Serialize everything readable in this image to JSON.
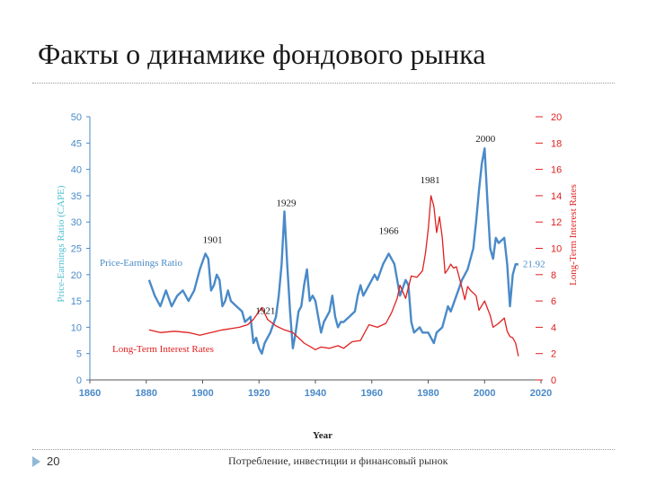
{
  "slide": {
    "title": "Факты о динамике фондового рынка",
    "page_number": "20",
    "footer": "Потребление, инвестиции и финансовый рынок"
  },
  "colors": {
    "pe": "#4a8ac8",
    "rates": "#e02020",
    "axis_left": "#4a8ac8",
    "axis_right": "#e02020",
    "ylabel_left": "#4fbfd0",
    "annotation": "#1a1a1a",
    "rule": "#9a9a9a",
    "marker": "#8fb9d6"
  },
  "chart_data": {
    "type": "line",
    "xlabel": "Year",
    "ylabel_left": "Price-Earnings Ratio (CAPE)",
    "ylabel_right": "Long-Term Interest Rates",
    "xlim": [
      1860,
      2020
    ],
    "ylim_left": [
      0,
      50
    ],
    "ylim_right": [
      0,
      20
    ],
    "x_ticks": [
      1860,
      1880,
      1900,
      1920,
      1940,
      1960,
      1980,
      2000,
      2020
    ],
    "y_ticks_left": [
      0,
      5,
      10,
      15,
      20,
      25,
      30,
      35,
      40,
      45,
      50
    ],
    "y_ticks_right": [
      0,
      2,
      4,
      6,
      8,
      10,
      12,
      14,
      16,
      18,
      20
    ],
    "grid": false,
    "series": [
      {
        "name": "Price-Earnings Ratio",
        "axis": "left",
        "points": [
          [
            1881,
            19
          ],
          [
            1883,
            16
          ],
          [
            1885,
            14
          ],
          [
            1887,
            17
          ],
          [
            1889,
            14
          ],
          [
            1891,
            16
          ],
          [
            1893,
            17
          ],
          [
            1895,
            15
          ],
          [
            1897,
            17
          ],
          [
            1899,
            21
          ],
          [
            1901,
            24
          ],
          [
            1902,
            23
          ],
          [
            1903,
            17
          ],
          [
            1904,
            18
          ],
          [
            1905,
            20
          ],
          [
            1906,
            19
          ],
          [
            1907,
            14
          ],
          [
            1908,
            15
          ],
          [
            1909,
            17
          ],
          [
            1910,
            15
          ],
          [
            1912,
            14
          ],
          [
            1914,
            13
          ],
          [
            1915,
            11
          ],
          [
            1917,
            12
          ],
          [
            1918,
            7
          ],
          [
            1919,
            8
          ],
          [
            1920,
            6
          ],
          [
            1921,
            5
          ],
          [
            1922,
            7
          ],
          [
            1924,
            9
          ],
          [
            1926,
            12
          ],
          [
            1927,
            16
          ],
          [
            1928,
            22
          ],
          [
            1929,
            32
          ],
          [
            1930,
            22
          ],
          [
            1931,
            13
          ],
          [
            1932,
            6
          ],
          [
            1933,
            9
          ],
          [
            1934,
            13
          ],
          [
            1935,
            14
          ],
          [
            1936,
            18
          ],
          [
            1937,
            21
          ],
          [
            1938,
            15
          ],
          [
            1939,
            16
          ],
          [
            1940,
            15
          ],
          [
            1941,
            12
          ],
          [
            1942,
            9
          ],
          [
            1943,
            11
          ],
          [
            1945,
            13
          ],
          [
            1946,
            16
          ],
          [
            1947,
            12
          ],
          [
            1948,
            10
          ],
          [
            1949,
            11
          ],
          [
            1950,
            11
          ],
          [
            1952,
            12
          ],
          [
            1954,
            13
          ],
          [
            1955,
            16
          ],
          [
            1956,
            18
          ],
          [
            1957,
            16
          ],
          [
            1959,
            18
          ],
          [
            1961,
            20
          ],
          [
            1962,
            19
          ],
          [
            1964,
            22
          ],
          [
            1966,
            24
          ],
          [
            1968,
            22
          ],
          [
            1970,
            16
          ],
          [
            1972,
            19
          ],
          [
            1973,
            18
          ],
          [
            1974,
            11
          ],
          [
            1975,
            9
          ],
          [
            1977,
            10
          ],
          [
            1978,
            9
          ],
          [
            1980,
            9
          ],
          [
            1982,
            7
          ],
          [
            1983,
            9
          ],
          [
            1985,
            10
          ],
          [
            1987,
            14
          ],
          [
            1988,
            13
          ],
          [
            1990,
            16
          ],
          [
            1992,
            19
          ],
          [
            1994,
            21
          ],
          [
            1996,
            25
          ],
          [
            1997,
            30
          ],
          [
            1998,
            36
          ],
          [
            1999,
            41
          ],
          [
            2000,
            44
          ],
          [
            2001,
            34
          ],
          [
            2002,
            25
          ],
          [
            2003,
            23
          ],
          [
            2004,
            27
          ],
          [
            2005,
            26
          ],
          [
            2007,
            27
          ],
          [
            2008,
            22
          ],
          [
            2009,
            14
          ],
          [
            2010,
            20
          ],
          [
            2011,
            22
          ],
          [
            2012,
            21.92
          ]
        ]
      },
      {
        "name": "Long-Term Interest Rates",
        "axis": "right",
        "points": [
          [
            1881,
            3.8
          ],
          [
            1885,
            3.6
          ],
          [
            1890,
            3.7
          ],
          [
            1895,
            3.6
          ],
          [
            1899,
            3.4
          ],
          [
            1903,
            3.6
          ],
          [
            1907,
            3.8
          ],
          [
            1910,
            3.9
          ],
          [
            1913,
            4.0
          ],
          [
            1916,
            4.2
          ],
          [
            1918,
            4.6
          ],
          [
            1920,
            5.2
          ],
          [
            1921,
            5.5
          ],
          [
            1923,
            4.6
          ],
          [
            1926,
            4.1
          ],
          [
            1929,
            3.8
          ],
          [
            1932,
            3.6
          ],
          [
            1934,
            3.2
          ],
          [
            1936,
            2.8
          ],
          [
            1940,
            2.3
          ],
          [
            1942,
            2.5
          ],
          [
            1945,
            2.4
          ],
          [
            1948,
            2.6
          ],
          [
            1950,
            2.4
          ],
          [
            1953,
            2.9
          ],
          [
            1956,
            3.0
          ],
          [
            1959,
            4.2
          ],
          [
            1962,
            4.0
          ],
          [
            1965,
            4.3
          ],
          [
            1967,
            5.1
          ],
          [
            1969,
            6.2
          ],
          [
            1970,
            7.2
          ],
          [
            1972,
            6.2
          ],
          [
            1974,
            7.9
          ],
          [
            1976,
            7.8
          ],
          [
            1978,
            8.3
          ],
          [
            1979,
            9.6
          ],
          [
            1980,
            11.4
          ],
          [
            1981,
            14.0
          ],
          [
            1982,
            13.2
          ],
          [
            1983,
            11.2
          ],
          [
            1984,
            12.4
          ],
          [
            1985,
            10.8
          ],
          [
            1986,
            8.1
          ],
          [
            1987,
            8.4
          ],
          [
            1988,
            8.8
          ],
          [
            1989,
            8.5
          ],
          [
            1990,
            8.6
          ],
          [
            1992,
            7.0
          ],
          [
            1993,
            6.1
          ],
          [
            1994,
            7.1
          ],
          [
            1995,
            6.8
          ],
          [
            1997,
            6.4
          ],
          [
            1998,
            5.3
          ],
          [
            2000,
            6.0
          ],
          [
            2002,
            4.9
          ],
          [
            2003,
            4.0
          ],
          [
            2005,
            4.3
          ],
          [
            2007,
            4.7
          ],
          [
            2008,
            3.7
          ],
          [
            2009,
            3.3
          ],
          [
            2010,
            3.2
          ],
          [
            2011,
            2.8
          ],
          [
            2012,
            1.8
          ]
        ]
      }
    ],
    "series_labels": [
      "Price-Earnings Ratio",
      "Long-Term Interest Rates"
    ],
    "annotations": [
      {
        "text": "1901",
        "x": 1901,
        "y": 24
      },
      {
        "text": "1921",
        "x": 1921,
        "y": 5
      },
      {
        "text": "1929",
        "x": 1929,
        "y": 32
      },
      {
        "text": "1966",
        "x": 1966,
        "y": 24
      },
      {
        "text": "1981",
        "x": 1981,
        "y": 14
      },
      {
        "text": "2000",
        "x": 2000,
        "y": 44
      },
      {
        "text": "21.92",
        "x": 2012,
        "y": 21.92
      }
    ]
  }
}
